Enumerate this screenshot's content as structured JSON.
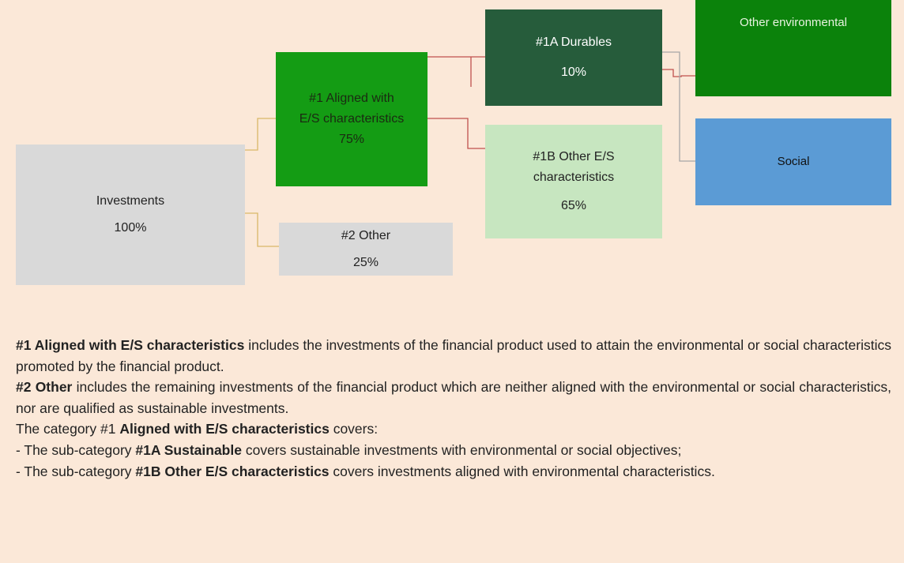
{
  "nodes": [
    {
      "label": "Investments",
      "value": "100%"
    },
    {
      "label": "#1 Aligned with E/S characteristics",
      "value": "75%"
    },
    {
      "label": "#2 Other",
      "value": "25%"
    },
    {
      "label": "#1A Durables",
      "value": "10%"
    },
    {
      "label": "#1B Other E/S characteristics",
      "value": "65%"
    },
    {
      "label": "Other environmental"
    },
    {
      "label": "Social"
    }
  ],
  "notes": [
    [
      {
        "text": "#1 Aligned with E/S characteristics",
        "bold": true
      },
      {
        "text": " includes the investments of the financial product used to attain the environmental or social characteristics promoted by the financial product."
      }
    ],
    [
      {
        "text": "#2 Other",
        "bold": true
      },
      {
        "text": " includes the remaining investments of the financial product which are neither aligned with the environmental or social characteristics, nor are qualified as sustainable investments."
      }
    ],
    [
      {
        "text": "The category #1 "
      },
      {
        "text": "Aligned with E/S characteristics",
        "bold": true
      },
      {
        "text": " covers:"
      }
    ],
    [
      {
        "text": "- The sub-category "
      },
      {
        "text": "#1A Sustainable",
        "bold": true
      },
      {
        "text": " covers sustainable investments with environmental or social objectives;"
      }
    ],
    [
      {
        "text": "- The sub-category "
      },
      {
        "text": "#1B Other E/S characteristics",
        "bold": true
      },
      {
        "text": " covers investments aligned with environmental characteristics."
      }
    ]
  ]
}
